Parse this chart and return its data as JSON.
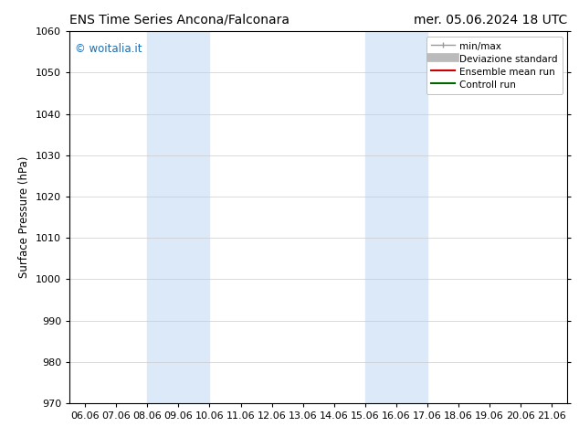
{
  "title_left": "ENS Time Series Ancona/Falconara",
  "title_right": "mer. 05.06.2024 18 UTC",
  "ylabel": "Surface Pressure (hPa)",
  "ylim": [
    970,
    1060
  ],
  "yticks": [
    970,
    980,
    990,
    1000,
    1010,
    1020,
    1030,
    1040,
    1050,
    1060
  ],
  "xtick_labels": [
    "06.06",
    "07.06",
    "08.06",
    "09.06",
    "10.06",
    "11.06",
    "12.06",
    "13.06",
    "14.06",
    "15.06",
    "16.06",
    "17.06",
    "18.06",
    "19.06",
    "20.06",
    "21.06"
  ],
  "xtick_positions": [
    0,
    1,
    2,
    3,
    4,
    5,
    6,
    7,
    8,
    9,
    10,
    11,
    12,
    13,
    14,
    15
  ],
  "shaded_bands": [
    {
      "x_start": 2,
      "x_end": 4
    },
    {
      "x_start": 9,
      "x_end": 11
    }
  ],
  "band_color": "#dce9f8",
  "watermark_text": "© woitalia.it",
  "watermark_color": "#1a6eb5",
  "bg_color": "#ffffff",
  "grid_color": "#cccccc",
  "title_fontsize": 10,
  "label_fontsize": 8.5,
  "tick_fontsize": 8,
  "legend_fontsize": 7.5
}
